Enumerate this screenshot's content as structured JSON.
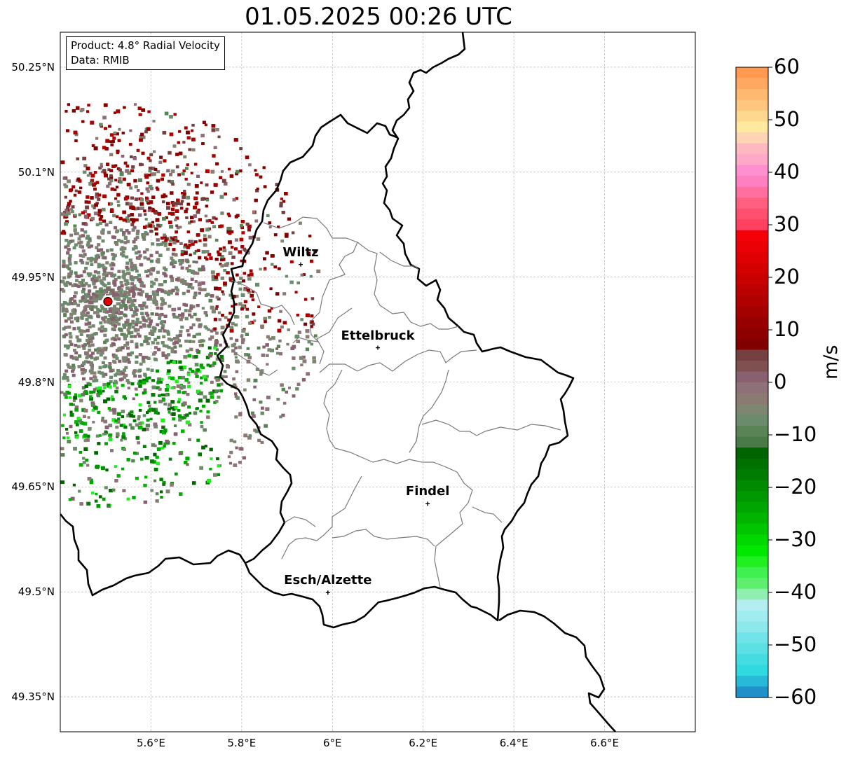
{
  "title": "01.05.2025 00:26 UTC",
  "info": {
    "product": "Product: 4.8° Radial Velocity",
    "data": "Data: RMIB"
  },
  "axes": {
    "lon_range": [
      5.4,
      6.8
    ],
    "lat_range": [
      49.3,
      50.3
    ],
    "x_ticks": [
      "5.6°E",
      "5.8°E",
      "6°E",
      "6.2°E",
      "6.4°E",
      "6.6°E"
    ],
    "y_ticks": [
      "50.25°N",
      "50.1°N",
      "49.95°N",
      "49.8°N",
      "49.65°N",
      "49.5°N",
      "49.35°N"
    ],
    "gridlines": true
  },
  "radar_site": {
    "lon": 5.505,
    "lat": 49.915,
    "color": "#e00000",
    "marker": "red-circle"
  },
  "cities": [
    {
      "name": "Wiltz",
      "lon": 5.93,
      "lat": 49.968
    },
    {
      "name": "Ettelbruck",
      "lon": 6.1,
      "lat": 49.849
    },
    {
      "name": "Findel",
      "lon": 6.21,
      "lat": 49.626
    },
    {
      "name": "Esch/Alzette",
      "lon": 5.99,
      "lat": 49.499
    }
  ],
  "colorbar": {
    "label": "m/s",
    "ticks": [
      "60",
      "50",
      "40",
      "30",
      "20",
      "10",
      "0",
      "−10",
      "−20",
      "−30",
      "−40",
      "−50",
      "−60"
    ],
    "range": [
      -60,
      60
    ],
    "colors_top_to_bottom": [
      "#ff9a50",
      "#ffa862",
      "#ffb870",
      "#ffc680",
      "#ffd890",
      "#ffe8a0",
      "#ffd4b4",
      "#ffb8c0",
      "#ffa8c8",
      "#ff90d0",
      "#ff80c0",
      "#ff70a0",
      "#ff6080",
      "#ff5070",
      "#ff4060",
      "#f40008",
      "#ea0006",
      "#e00004",
      "#d40000",
      "#c80000",
      "#bc0000",
      "#b00000",
      "#a40000",
      "#980000",
      "#8c0000",
      "#800000",
      "#744040",
      "#7e5050",
      "#886070",
      "#8e7078",
      "#8a7a72",
      "#7e8672",
      "#6a8c6c",
      "#5a8456",
      "#4a7a48",
      "#006400",
      "#007000",
      "#007c00",
      "#008a00",
      "#009800",
      "#00a600",
      "#00b400",
      "#00c600",
      "#00d800",
      "#00e800",
      "#20f020",
      "#40f050",
      "#60ee70",
      "#90eeb0",
      "#b4eef0",
      "#a0ecee",
      "#8ce8ea",
      "#70e4e8",
      "#5ce0e4",
      "#44dce0",
      "#30d8e0",
      "#28b8d8",
      "#2090c8"
    ]
  }
}
